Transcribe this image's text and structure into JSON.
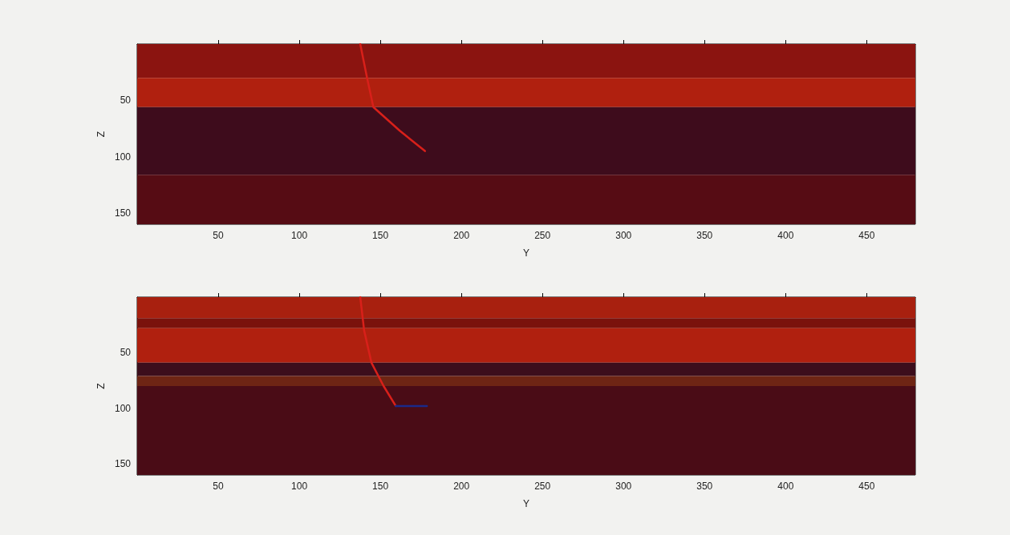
{
  "chart_data": [
    {
      "type": "line",
      "xlabel": "Y",
      "ylabel": "Z",
      "xlim": [
        0,
        480
      ],
      "ylim": [
        160,
        0
      ],
      "xticks": [
        50,
        100,
        150,
        200,
        250,
        300,
        350,
        400,
        450
      ],
      "yticks": [
        50,
        100,
        150
      ],
      "grid": false,
      "marker": "none",
      "line_style": "solid",
      "bands": [
        {
          "axis": "y",
          "from": 0,
          "to": 30,
          "color": "#8b1410"
        },
        {
          "axis": "y",
          "from": 30,
          "to": 56,
          "color": "#b0200f"
        },
        {
          "axis": "y",
          "from": 56,
          "to": 116,
          "color": "#3e0c1c"
        },
        {
          "axis": "y",
          "from": 116,
          "to": 160,
          "color": "#560c14"
        }
      ],
      "series": [
        {
          "color": "#d8201a",
          "x": [
            137.6,
            141.8,
            145.7,
            162,
            177.5
          ],
          "values": [
            0,
            30,
            56,
            77,
            95
          ]
        }
      ]
    },
    {
      "type": "line",
      "xlabel": "Y",
      "ylabel": "Z",
      "xlim": [
        0,
        480
      ],
      "ylim": [
        160,
        0
      ],
      "xticks": [
        50,
        100,
        150,
        200,
        250,
        300,
        350,
        400,
        450
      ],
      "yticks": [
        50,
        100,
        150
      ],
      "grid": false,
      "marker": "none",
      "line_style": "solid",
      "bands": [
        {
          "axis": "y",
          "from": 0,
          "to": 19,
          "color": "#a8200f"
        },
        {
          "axis": "y",
          "from": 19,
          "to": 28,
          "color": "#7a120c"
        },
        {
          "axis": "y",
          "from": 28,
          "to": 59,
          "color": "#b0200f"
        },
        {
          "axis": "y",
          "from": 59,
          "to": 71,
          "color": "#3c0e1c"
        },
        {
          "axis": "y",
          "from": 71,
          "to": 80,
          "color": "#6e2514"
        },
        {
          "axis": "y",
          "from": 80,
          "to": 160,
          "color": "#4a0c16"
        }
      ],
      "series": [
        {
          "color": "#d8201a",
          "x": [
            137.6,
            140,
            144.5,
            152,
            159.5
          ],
          "values": [
            0,
            30,
            59,
            80,
            98
          ]
        },
        {
          "color": "#1a2a8a",
          "x": [
            159.5,
            178.7
          ],
          "values": [
            98,
            98
          ]
        }
      ]
    }
  ]
}
